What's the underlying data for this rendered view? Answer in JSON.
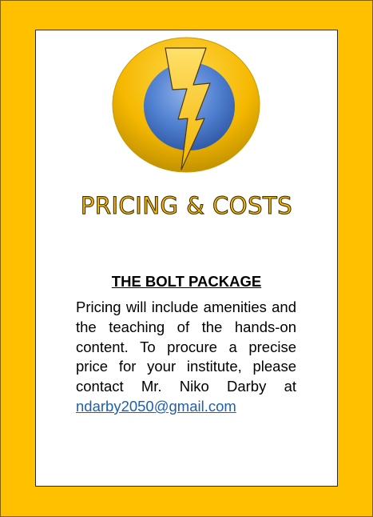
{
  "heading": "PRICING & COSTS",
  "package_title": "THE BOLT PACKAGE",
  "description": "Pricing will include amenities and the teaching of the hands-on content. To procure a precise price for your institute, please contact Mr. Niko Darby at",
  "contact_email": "ndarby2050@gmail.com",
  "logo_icon": "lightning-bolt-logo-icon",
  "colors": {
    "background": "#ffc000",
    "card": "#ffffff",
    "heading_fill": "#ffc000",
    "heading_outline": "#3d2e00",
    "logo_blue": "#3f6fc4",
    "link": "#1f5fb0"
  }
}
